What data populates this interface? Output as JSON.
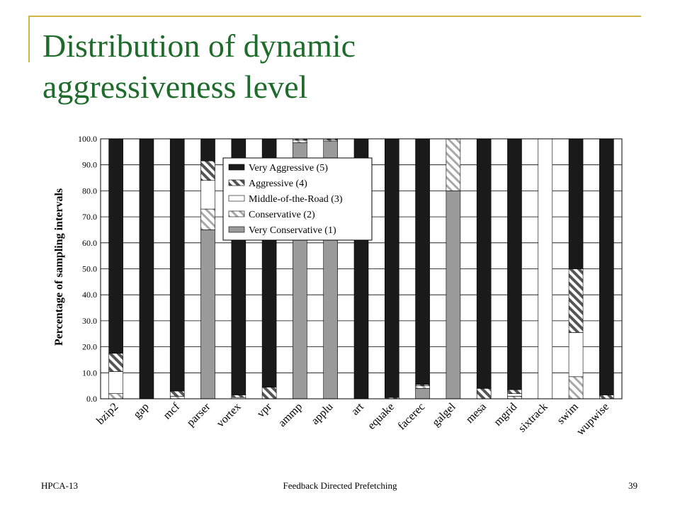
{
  "slide": {
    "title": "Distribution of dynamic aggressiveness level",
    "footer_left": "HPCA-13",
    "footer_center": "Feedback Directed Prefetching",
    "page_number": "39",
    "title_color": "#1f6b2b",
    "accent_color": "#d4b54a"
  },
  "chart_data": {
    "type": "bar",
    "stacked": true,
    "ylabel": "Percentage of sampling intervals",
    "xlabel": "",
    "ylim": [
      0,
      100
    ],
    "yticks": [
      "0.0",
      "10.0",
      "20.0",
      "30.0",
      "40.0",
      "50.0",
      "60.0",
      "70.0",
      "80.0",
      "90.0",
      "100.0"
    ],
    "grid": true,
    "legend_position": "top-center",
    "categories": [
      "bzip2",
      "gap",
      "mcf",
      "parser",
      "vortex",
      "vpr",
      "ammp",
      "applu",
      "art",
      "equake",
      "facerec",
      "galgel",
      "mesa",
      "mgrid",
      "sixtrack",
      "swim",
      "wupwise"
    ],
    "series": [
      {
        "name": "Very Conservative (1)",
        "pattern": "gray",
        "values": [
          0,
          0,
          0,
          65,
          0,
          0,
          98.5,
          99,
          0,
          0,
          4,
          80,
          0,
          0,
          0,
          0,
          0
        ]
      },
      {
        "name": "Conservative (2)",
        "pattern": "light-hatch",
        "values": [
          2,
          0,
          1,
          8,
          0,
          0,
          1,
          0.5,
          0,
          0,
          1,
          20,
          0,
          1,
          0,
          8.5,
          0
        ]
      },
      {
        "name": "Middle-of-the-Road (3)",
        "pattern": "white",
        "values": [
          8.5,
          0,
          0,
          11,
          0.5,
          0,
          0,
          0,
          0,
          0,
          0,
          0,
          0,
          1,
          100,
          17,
          0
        ]
      },
      {
        "name": "Aggressive (4)",
        "pattern": "dark-hatch",
        "values": [
          7,
          0,
          2,
          7.5,
          1,
          4.5,
          0.5,
          0.5,
          0,
          0.5,
          0.5,
          0,
          4,
          1.5,
          0,
          24.5,
          1.5
        ]
      },
      {
        "name": "Very Aggressive (5)",
        "pattern": "black",
        "values": [
          82.5,
          100,
          97,
          8.5,
          98.5,
          95.5,
          0,
          0,
          100,
          99.5,
          94.5,
          0,
          96,
          96.5,
          0,
          50,
          98.5
        ]
      }
    ]
  }
}
